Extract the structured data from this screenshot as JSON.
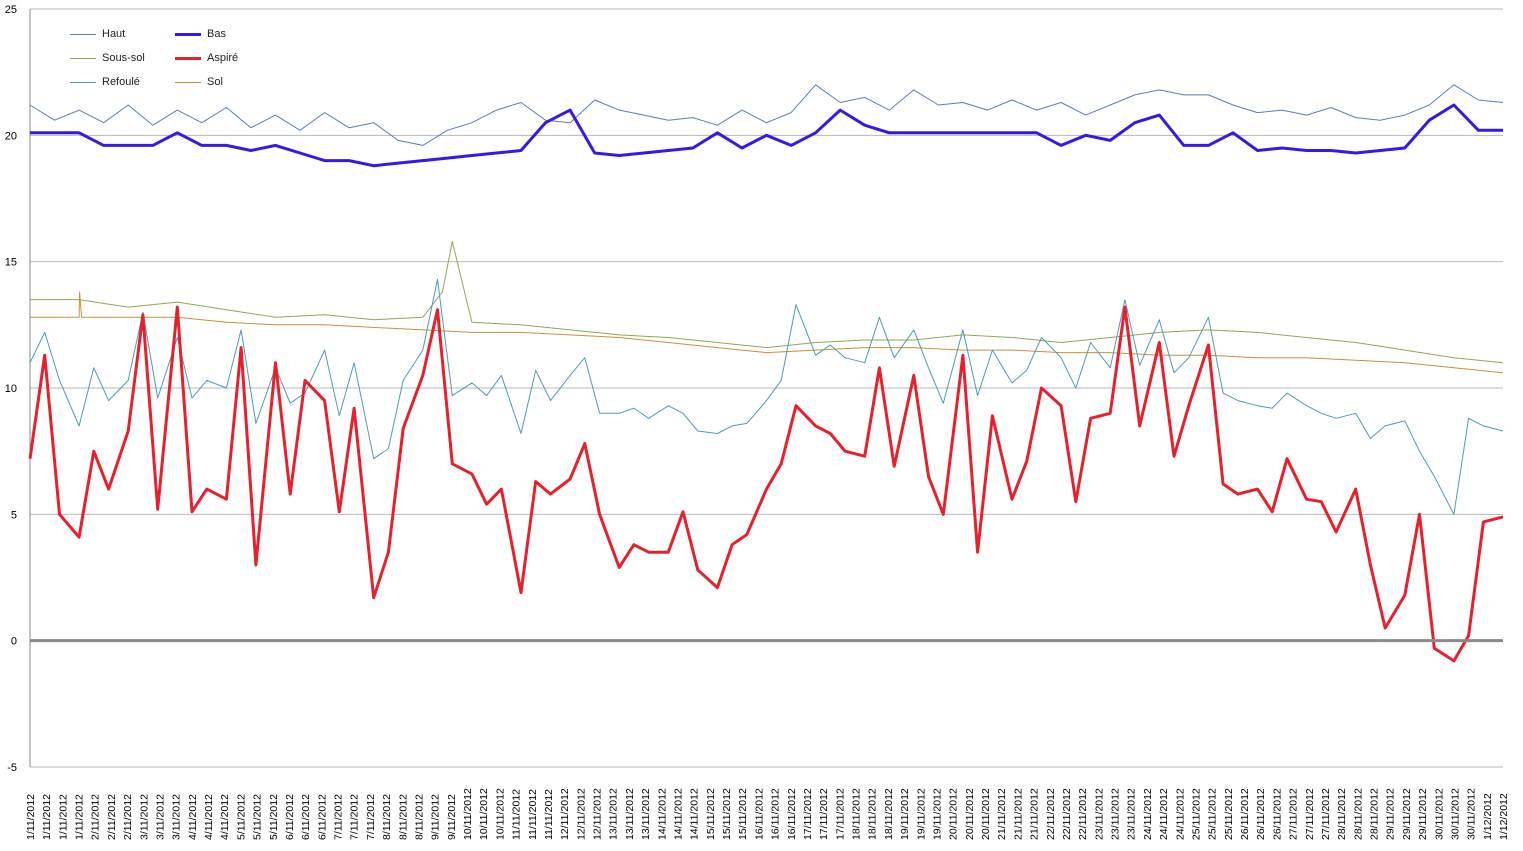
{
  "chart_data": {
    "type": "line",
    "title": "",
    "xlabel": "",
    "ylabel": "",
    "ylim": [
      -5,
      25
    ],
    "yticks": [
      -5,
      0,
      5,
      10,
      15,
      20,
      25
    ],
    "grid": "horizontal",
    "legend": "top-left",
    "x_tick_labels": [
      "1/11/2012",
      "1/11/2012",
      "1/11/2012",
      "1/11/2012",
      "2/11/2012",
      "2/11/2012",
      "2/11/2012",
      "3/11/2012",
      "3/11/2012",
      "3/11/2012",
      "4/11/2012",
      "4/11/2012",
      "4/11/2012",
      "5/11/2012",
      "5/11/2012",
      "5/11/2012",
      "6/11/2012",
      "6/11/2012",
      "6/11/2012",
      "7/11/2012",
      "7/11/2012",
      "7/11/2012",
      "8/11/2012",
      "8/11/2012",
      "8/11/2012",
      "9/11/2012",
      "9/11/2012",
      "10/11/2012",
      "10/11/2012",
      "10/11/2012",
      "11/11/2012",
      "11/11/2012",
      "11/11/2012",
      "12/11/2012",
      "12/11/2012",
      "12/11/2012",
      "13/11/2012",
      "13/11/2012",
      "13/11/2012",
      "14/11/2012",
      "14/11/2012",
      "14/11/2012",
      "15/11/2012",
      "15/11/2012",
      "15/11/2012",
      "16/11/2012",
      "16/11/2012",
      "16/11/2012",
      "17/11/2012",
      "17/11/2012",
      "17/11/2012",
      "18/11/2012",
      "18/11/2012",
      "18/11/2012",
      "19/11/2012",
      "19/11/2012",
      "19/11/2012",
      "20/11/2012",
      "20/11/2012",
      "20/11/2012",
      "21/11/2012",
      "21/11/2012",
      "21/11/2012",
      "22/11/2012",
      "22/11/2012",
      "22/11/2012",
      "23/11/2012",
      "23/11/2012",
      "23/11/2012",
      "24/11/2012",
      "24/11/2012",
      "24/11/2012",
      "25/11/2012",
      "25/11/2012",
      "25/11/2012",
      "26/11/2012",
      "26/11/2012",
      "26/11/2012",
      "27/11/2012",
      "27/11/2012",
      "27/11/2012",
      "28/11/2012",
      "28/11/2012",
      "28/11/2012",
      "29/11/2012",
      "29/11/2012",
      "29/11/2012",
      "30/11/2012",
      "30/11/2012",
      "30/11/2012",
      "1/12/2012",
      "1/12/2012"
    ],
    "x_range_days": [
      1,
      31
    ],
    "series": [
      {
        "name": "Haut",
        "color": "#5b7fb0",
        "width": 1,
        "x": [
          1,
          1.5,
          2,
          2.5,
          3,
          3.5,
          4,
          4.5,
          5,
          5.5,
          6,
          6.5,
          7,
          7.5,
          8,
          8.5,
          9,
          9.5,
          10,
          10.5,
          11,
          11.5,
          12,
          12.5,
          13,
          13.5,
          14,
          14.5,
          15,
          15.5,
          16,
          16.5,
          17,
          17.5,
          18,
          18.5,
          19,
          19.5,
          20,
          20.5,
          21,
          21.5,
          22,
          22.5,
          23,
          23.5,
          24,
          24.5,
          25,
          25.5,
          26,
          26.5,
          27,
          27.5,
          28,
          28.5,
          29,
          29.5,
          30,
          30.5,
          31
        ],
        "values": [
          21.2,
          20.6,
          21.0,
          20.5,
          21.2,
          20.4,
          21.0,
          20.5,
          21.1,
          20.3,
          20.8,
          20.2,
          20.9,
          20.3,
          20.5,
          19.8,
          19.6,
          20.2,
          20.5,
          21.0,
          21.3,
          20.6,
          20.5,
          21.4,
          21.0,
          20.8,
          20.6,
          20.7,
          20.4,
          21.0,
          20.5,
          20.9,
          22.0,
          21.3,
          21.5,
          21.0,
          21.8,
          21.2,
          21.3,
          21.0,
          21.4,
          21.0,
          21.3,
          20.8,
          21.2,
          21.6,
          21.8,
          21.6,
          21.6,
          21.2,
          20.9,
          21.0,
          20.8,
          21.1,
          20.7,
          20.6,
          20.8,
          21.2,
          22.0,
          21.4,
          21.3
        ]
      },
      {
        "name": "Bas",
        "color": "#3a17e8",
        "width": 3,
        "x": [
          1,
          1.5,
          2,
          2.5,
          3,
          3.5,
          4,
          4.5,
          5,
          5.5,
          6,
          6.5,
          7,
          7.5,
          8,
          8.5,
          9,
          9.5,
          10,
          10.5,
          11,
          11.5,
          12,
          12.5,
          13,
          13.5,
          14,
          14.5,
          15,
          15.5,
          16,
          16.5,
          17,
          17.5,
          18,
          18.5,
          19,
          19.5,
          20,
          20.5,
          21,
          21.5,
          22,
          22.5,
          23,
          23.5,
          24,
          24.5,
          25,
          25.5,
          26,
          26.5,
          27,
          27.5,
          28,
          28.5,
          29,
          29.5,
          30,
          30.5,
          31
        ],
        "values": [
          20.1,
          20.1,
          20.1,
          19.6,
          19.6,
          19.6,
          20.1,
          19.6,
          19.6,
          19.4,
          19.6,
          19.3,
          19.0,
          19.0,
          18.8,
          18.9,
          19.0,
          19.1,
          19.2,
          19.3,
          19.4,
          20.5,
          21.0,
          19.3,
          19.2,
          19.3,
          19.4,
          19.5,
          20.1,
          19.5,
          20.0,
          19.6,
          20.1,
          21.0,
          20.4,
          20.1,
          20.1,
          20.1,
          20.1,
          20.1,
          20.1,
          20.1,
          19.6,
          20.0,
          19.8,
          20.5,
          20.8,
          19.6,
          19.6,
          20.1,
          19.4,
          19.5,
          19.4,
          19.4,
          19.3,
          19.4,
          19.5,
          20.6,
          21.2,
          20.2,
          20.2
        ]
      },
      {
        "name": "Sous-sol",
        "color": "#8fa75a",
        "width": 1,
        "x": [
          1,
          2,
          3,
          4,
          5,
          6,
          7,
          8,
          9,
          9.4,
          9.6,
          10,
          11,
          12,
          13,
          14,
          15,
          16,
          17,
          18,
          19,
          20,
          21,
          22,
          23,
          24,
          25,
          26,
          27,
          28,
          29,
          30,
          31
        ],
        "values": [
          13.5,
          13.5,
          13.2,
          13.4,
          13.1,
          12.8,
          12.9,
          12.7,
          12.8,
          13.8,
          15.8,
          12.6,
          12.5,
          12.3,
          12.1,
          12.0,
          11.8,
          11.6,
          11.8,
          11.9,
          11.9,
          12.1,
          12.0,
          11.8,
          12.0,
          12.2,
          12.3,
          12.2,
          12.0,
          11.8,
          11.5,
          11.2,
          11.0
        ]
      },
      {
        "name": "Aspiré",
        "color": "#e8202c",
        "width": 3,
        "x": [
          1,
          1.3,
          1.6,
          2,
          2.3,
          2.6,
          3,
          3.3,
          3.6,
          4,
          4.3,
          4.6,
          5,
          5.3,
          5.6,
          6,
          6.3,
          6.6,
          7,
          7.3,
          7.6,
          8,
          8.3,
          8.6,
          9,
          9.3,
          9.6,
          10,
          10.3,
          10.6,
          11,
          11.3,
          11.6,
          12,
          12.3,
          12.6,
          13,
          13.3,
          13.6,
          14,
          14.3,
          14.6,
          15,
          15.3,
          15.6,
          16,
          16.3,
          16.6,
          17,
          17.3,
          17.6,
          18,
          18.3,
          18.6,
          19,
          19.3,
          19.6,
          20,
          20.3,
          20.6,
          21,
          21.3,
          21.6,
          22,
          22.3,
          22.6,
          23,
          23.3,
          23.6,
          24,
          24.3,
          24.6,
          25,
          25.3,
          25.6,
          26,
          26.3,
          26.6,
          27,
          27.3,
          27.6,
          28,
          28.3,
          28.6,
          29,
          29.3,
          29.6,
          30,
          30.3,
          30.6,
          31
        ],
        "values": [
          7.2,
          11.3,
          5.0,
          4.1,
          7.5,
          6.0,
          8.3,
          12.9,
          5.2,
          13.2,
          5.1,
          6.0,
          5.6,
          11.6,
          3.0,
          11.0,
          5.8,
          10.3,
          9.5,
          5.1,
          9.2,
          1.7,
          3.5,
          8.4,
          10.5,
          13.1,
          7.0,
          6.6,
          5.4,
          6.0,
          1.9,
          6.3,
          5.8,
          6.4,
          7.8,
          5.0,
          2.9,
          3.8,
          3.5,
          3.5,
          5.1,
          2.8,
          2.1,
          3.8,
          4.2,
          6.0,
          7.0,
          9.3,
          8.5,
          8.2,
          7.5,
          7.3,
          10.8,
          6.9,
          10.5,
          6.5,
          5.0,
          11.3,
          3.5,
          8.9,
          5.6,
          7.1,
          10.0,
          9.3,
          5.5,
          8.8,
          9.0,
          13.2,
          8.5,
          11.8,
          7.3,
          9.3,
          11.7,
          6.2,
          5.8,
          6.0,
          5.1,
          7.2,
          5.6,
          5.5,
          4.3,
          6.0,
          3.0,
          0.5,
          1.8,
          5.0,
          -0.3,
          -0.8,
          0.2,
          4.7,
          4.9
        ]
      },
      {
        "name": "Refoulé",
        "color": "#4d9bb5",
        "width": 1,
        "x": [
          1,
          1.3,
          1.6,
          2,
          2.3,
          2.6,
          3,
          3.3,
          3.6,
          4,
          4.3,
          4.6,
          5,
          5.3,
          5.6,
          6,
          6.3,
          6.6,
          7,
          7.3,
          7.6,
          8,
          8.3,
          8.6,
          9,
          9.3,
          9.6,
          10,
          10.3,
          10.6,
          11,
          11.3,
          11.6,
          12,
          12.3,
          12.6,
          13,
          13.3,
          13.6,
          14,
          14.3,
          14.6,
          15,
          15.3,
          15.6,
          16,
          16.3,
          16.6,
          17,
          17.3,
          17.6,
          18,
          18.3,
          18.6,
          19,
          19.3,
          19.6,
          20,
          20.3,
          20.6,
          21,
          21.3,
          21.6,
          22,
          22.3,
          22.6,
          23,
          23.3,
          23.6,
          24,
          24.3,
          24.6,
          25,
          25.3,
          25.6,
          26,
          26.3,
          26.6,
          27,
          27.3,
          27.6,
          28,
          28.3,
          28.6,
          29,
          29.3,
          29.6,
          30,
          30.3,
          30.6,
          31
        ],
        "values": [
          11.0,
          12.2,
          10.3,
          8.5,
          10.8,
          9.5,
          10.3,
          13.0,
          9.6,
          12.0,
          9.6,
          10.3,
          10.0,
          12.3,
          8.6,
          10.8,
          9.4,
          9.8,
          11.5,
          8.9,
          11.0,
          7.2,
          7.6,
          10.3,
          11.5,
          14.3,
          9.7,
          10.2,
          9.7,
          10.5,
          8.2,
          10.7,
          9.5,
          10.5,
          11.2,
          9.0,
          9.0,
          9.2,
          8.8,
          9.3,
          9.0,
          8.3,
          8.2,
          8.5,
          8.6,
          9.5,
          10.3,
          13.3,
          11.3,
          11.7,
          11.2,
          11.0,
          12.8,
          11.2,
          12.3,
          10.8,
          9.4,
          12.3,
          9.7,
          11.5,
          10.2,
          10.7,
          12.0,
          11.2,
          10.0,
          11.8,
          10.8,
          13.5,
          10.9,
          12.7,
          10.6,
          11.2,
          12.8,
          9.8,
          9.5,
          9.3,
          9.2,
          9.8,
          9.3,
          9.0,
          8.8,
          9.0,
          8.0,
          8.5,
          8.7,
          7.5,
          6.5,
          5.0,
          8.8,
          8.5,
          8.3
        ]
      },
      {
        "name": "Sol",
        "color": "#c8903c",
        "width": 1,
        "x": [
          1,
          2,
          2.01,
          2.05,
          3,
          4,
          5,
          6,
          7,
          8,
          9,
          10,
          11,
          12,
          13,
          14,
          15,
          16,
          17,
          18,
          19,
          20,
          21,
          22,
          23,
          24,
          25,
          26,
          27,
          28,
          29,
          30,
          31
        ],
        "values": [
          12.8,
          12.8,
          13.8,
          12.8,
          12.8,
          12.8,
          12.6,
          12.5,
          12.5,
          12.4,
          12.3,
          12.2,
          12.2,
          12.1,
          12.0,
          11.8,
          11.6,
          11.4,
          11.5,
          11.6,
          11.6,
          11.5,
          11.5,
          11.4,
          11.4,
          11.3,
          11.3,
          11.2,
          11.2,
          11.1,
          11.0,
          10.8,
          10.6
        ]
      }
    ]
  }
}
